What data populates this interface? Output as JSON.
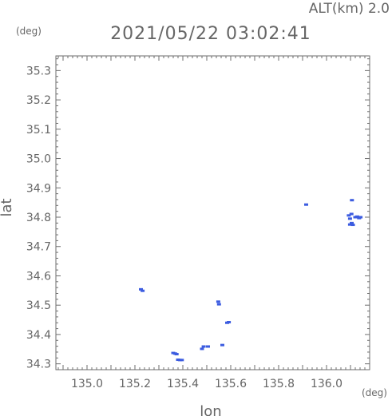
{
  "header": {
    "alt_label": "ALT(km) 2.0",
    "timestamp": "2021/05/22 03:02:41"
  },
  "colors": {
    "marker": "#3c5ce0",
    "frame": "#6e6e6e",
    "text": "#666666"
  },
  "chart_data": {
    "type": "scatter",
    "title": "2021/05/22 03:02:41",
    "subtitle": "ALT(km) 2.0",
    "xlabel": "lon",
    "ylabel": "lat",
    "xunit": "(deg)",
    "yunit": "(deg)",
    "xlim": [
      134.87,
      136.18
    ],
    "ylim": [
      34.28,
      35.35
    ],
    "xticks": [
      "135.0",
      "135.2",
      "135.4",
      "135.6",
      "135.8",
      "136.0"
    ],
    "yticks": [
      "34.3",
      "34.4",
      "34.5",
      "34.6",
      "34.7",
      "34.8",
      "34.9",
      "35.0",
      "35.1",
      "35.2",
      "35.3"
    ],
    "grid": false,
    "points": [
      {
        "lon": 135.225,
        "lat": 34.554
      },
      {
        "lon": 135.232,
        "lat": 34.549
      },
      {
        "lon": 135.36,
        "lat": 34.337
      },
      {
        "lon": 135.368,
        "lat": 34.335
      },
      {
        "lon": 135.374,
        "lat": 34.333
      },
      {
        "lon": 135.38,
        "lat": 34.314
      },
      {
        "lon": 135.388,
        "lat": 34.313
      },
      {
        "lon": 135.396,
        "lat": 34.313
      },
      {
        "lon": 135.48,
        "lat": 34.351
      },
      {
        "lon": 135.487,
        "lat": 34.359
      },
      {
        "lon": 135.505,
        "lat": 34.359
      },
      {
        "lon": 135.548,
        "lat": 34.512
      },
      {
        "lon": 135.551,
        "lat": 34.503
      },
      {
        "lon": 135.565,
        "lat": 34.364
      },
      {
        "lon": 135.585,
        "lat": 34.44
      },
      {
        "lon": 135.592,
        "lat": 34.442
      },
      {
        "lon": 135.915,
        "lat": 34.843
      },
      {
        "lon": 136.106,
        "lat": 34.858
      },
      {
        "lon": 136.093,
        "lat": 34.806
      },
      {
        "lon": 136.104,
        "lat": 34.811
      },
      {
        "lon": 136.098,
        "lat": 34.795
      },
      {
        "lon": 136.105,
        "lat": 34.78
      },
      {
        "lon": 136.098,
        "lat": 34.775
      },
      {
        "lon": 136.11,
        "lat": 34.774
      },
      {
        "lon": 136.12,
        "lat": 34.8
      },
      {
        "lon": 136.128,
        "lat": 34.802
      },
      {
        "lon": 136.136,
        "lat": 34.797
      },
      {
        "lon": 136.142,
        "lat": 34.8
      }
    ]
  }
}
